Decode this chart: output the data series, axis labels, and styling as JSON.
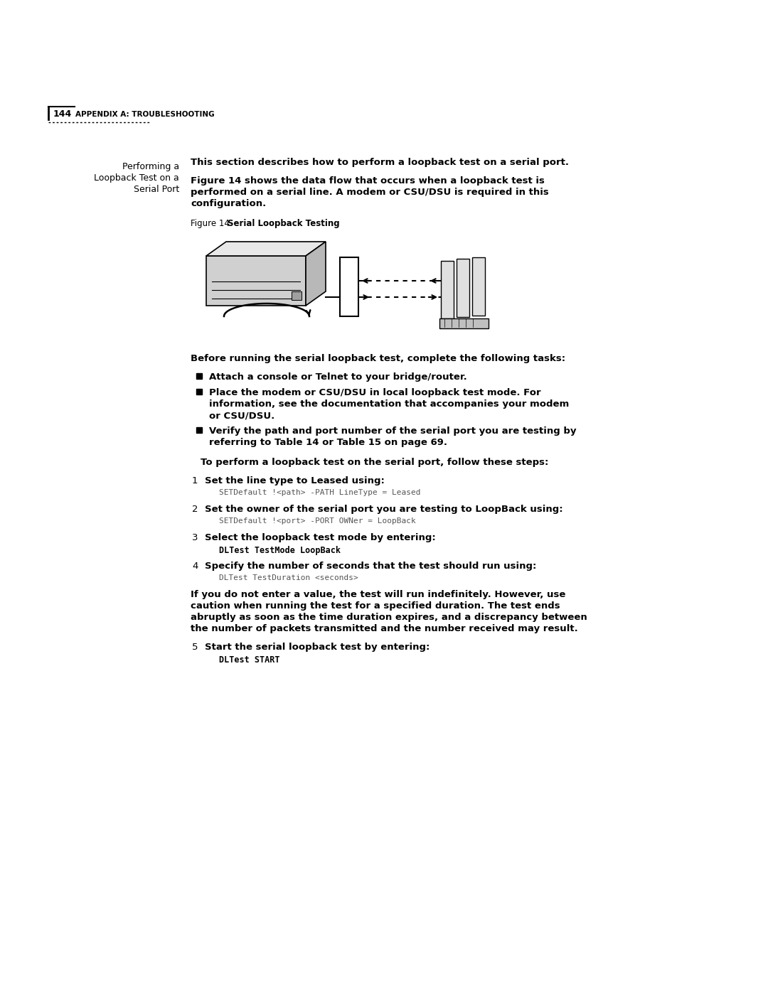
{
  "bg_color": "#ffffff",
  "page_number": "144",
  "header_label": "APPENDIX A: TROUBLESHOOTING",
  "intro_bold": "This section describes how to perform a loopback test on a serial port.",
  "body1_line1": "Figure 14 shows the data flow that occurs when a loopback test is",
  "body1_line2": "performed on a serial line. A modem or CSU/DSU is required in this",
  "body1_line3": "configuration.",
  "figure_label": "Figure 14",
  "figure_title": "Serial Loopback Testing",
  "before_text": "Before running the serial loopback test, complete the following tasks:",
  "bullet1": "Attach a console or Telnet to your bridge/router.",
  "bullet2_line1": "Place the modem or CSU/DSU in local loopback test mode. For",
  "bullet2_line2": "information, see the documentation that accompanies your modem",
  "bullet2_line3": "or CSU/DSU.",
  "bullet3_line1": "Verify the path and port number of the serial port you are testing by",
  "bullet3_line2": "referring to Table 14 or Table 15 on page 69.",
  "steps_intro": "To perform a loopback test on the serial port, follow these steps:",
  "step1_bold": "Set the line type to Leased using:",
  "step1_code": "SETDefault !<path> -PATH LineType = Leased",
  "step2_bold": "Set the owner of the serial port you are testing to LoopBack using:",
  "step2_code": "SETDefault !<port> -PORT OWNer = LoopBack",
  "step3_bold": "Select the loopback test mode by entering:",
  "step3_code": "DLTest TestMode LoopBack",
  "step4_bold": "Specify the number of seconds that the test should run using:",
  "step4_code": "DLTest TestDuration <seconds>",
  "warn_line1": "If you do not enter a value, the test will run indefinitely. However, use",
  "warn_line2": "caution when running the test for a specified duration. The test ends",
  "warn_line3": "abruptly as soon as the time duration expires, and a discrepancy between",
  "warn_line4": "the number of packets transmitted and the number received may result.",
  "step5_bold": "Start the serial loopback test by entering:",
  "step5_code": "DLTest START",
  "left_col_line1": "Performing a",
  "left_col_line2": "Loopback Test on a",
  "left_col_line3": "Serial Port"
}
